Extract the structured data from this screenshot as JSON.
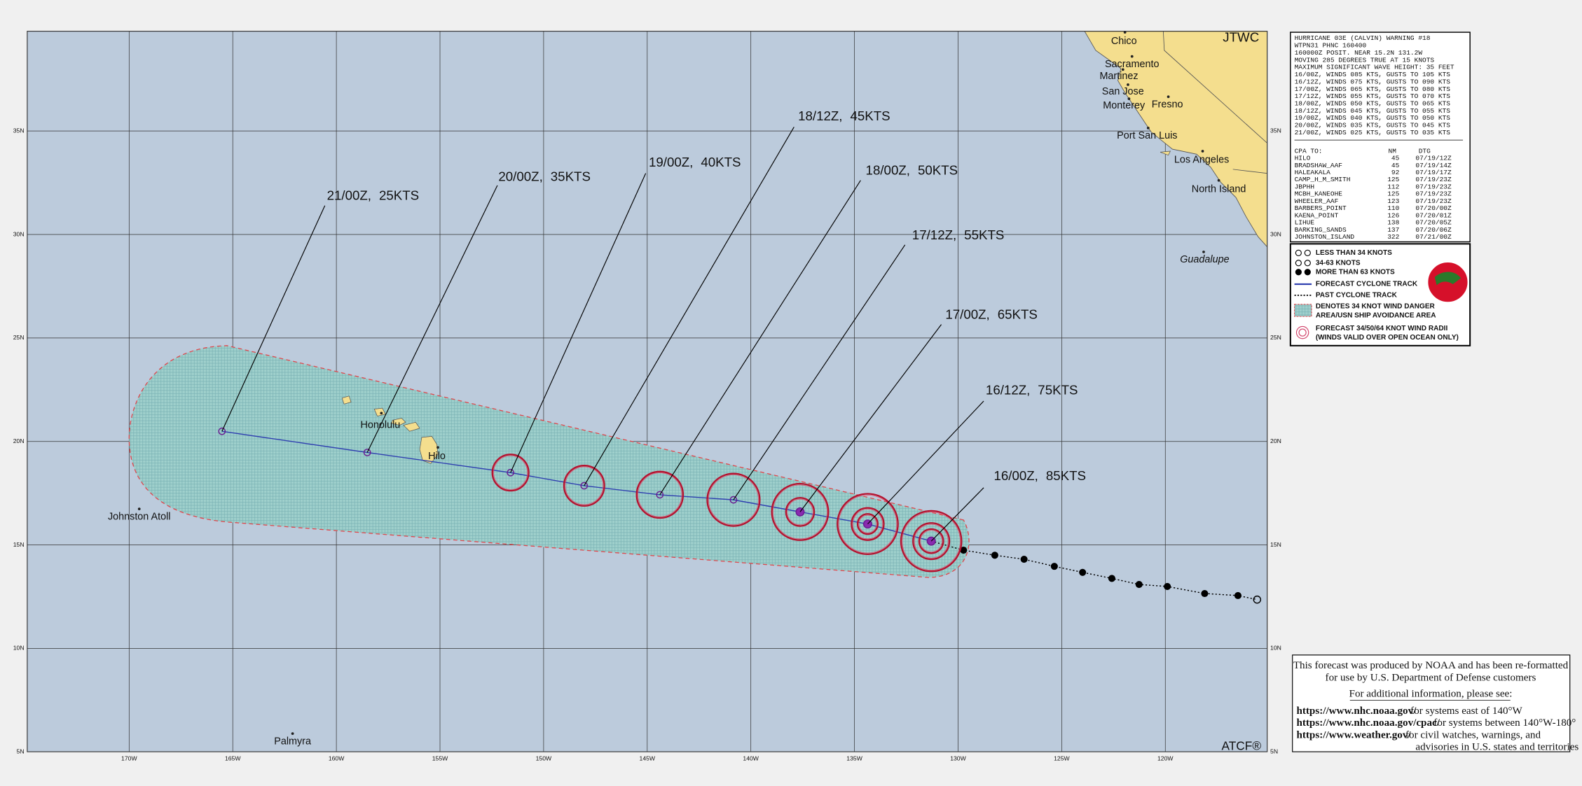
{
  "header": {
    "agency": "JTWC",
    "footer_mark": "ATCF®"
  },
  "warning": {
    "lines": [
      "HURRICANE 03E (CALVIN) WARNING #18",
      "WTPN31 PHNC 160400",
      "160000Z POSIT. NEAR 15.2N 131.2W",
      "MOVING 285 DEGREES TRUE AT 15 KNOTS",
      "MAXIMUM SIGNIFICANT WAVE HEIGHT: 35 FEET",
      "16/00Z, WINDS 085 KTS, GUSTS TO 105 KTS",
      "16/12Z, WINDS 075 KTS, GUSTS TO 090 KTS",
      "17/00Z, WINDS 065 KTS, GUSTS TO 080 KTS",
      "17/12Z, WINDS 055 KTS, GUSTS TO 070 KTS",
      "18/00Z, WINDS 050 KTS, GUSTS TO 065 KTS",
      "18/12Z, WINDS 045 KTS, GUSTS TO 055 KTS",
      "19/00Z, WINDS 040 KTS, GUSTS TO 050 KTS",
      "20/00Z, WINDS 035 KTS, GUSTS TO 045 KTS",
      "21/00Z, WINDS 025 KTS, GUSTS TO 035 KTS"
    ]
  },
  "cpa": {
    "title": "CPA TO:",
    "columns": [
      "NM",
      "DTG"
    ],
    "rows": [
      [
        "HILO",
        45,
        "07/19/12Z"
      ],
      [
        "BRADSHAW_AAF",
        45,
        "07/19/14Z"
      ],
      [
        "HALEAKALA",
        92,
        "07/19/17Z"
      ],
      [
        "CAMP_H_M_SMITH",
        125,
        "07/19/23Z"
      ],
      [
        "JBPHH",
        112,
        "07/19/23Z"
      ],
      [
        "MCBH_KANEOHE",
        125,
        "07/19/23Z"
      ],
      [
        "WHEELER_AAF",
        123,
        "07/19/23Z"
      ],
      [
        "BARBERS_POINT",
        110,
        "07/20/00Z"
      ],
      [
        "KAENA_POINT",
        126,
        "07/20/01Z"
      ],
      [
        "LIHUE",
        138,
        "07/20/05Z"
      ],
      [
        "BARKING_SANDS",
        137,
        "07/20/06Z"
      ],
      [
        "JOHNSTON_ISLAND",
        322,
        "07/21/00Z"
      ]
    ]
  },
  "legend": {
    "items": [
      "LESS THAN 34 KNOTS",
      "34-63 KNOTS",
      "MORE THAN 63 KNOTS",
      "FORECAST CYCLONE TRACK",
      "PAST CYCLONE TRACK",
      "DENOTES 34 KNOT WIND DANGER",
      "AREA/USN SHIP AVOIDANCE AREA",
      "FORECAST 34/50/64 KNOT WIND RADII",
      "(WINDS VALID OVER OPEN OCEAN ONLY)"
    ]
  },
  "forecast_labels": [
    "16/00Z, 85KTS",
    "16/12Z, 75KTS",
    "17/00Z, 65KTS",
    "17/12Z, 55KTS",
    "18/00Z, 50KTS",
    "18/12Z, 45KTS",
    "19/00Z, 40KTS",
    "20/00Z, 35KTS",
    "21/00Z, 25KTS"
  ],
  "places": [
    "Chico",
    "Sacramento",
    "Martinez",
    "San Jose",
    "Monterey",
    "Fresno",
    "Port San Luis",
    "Los Angeles",
    "North Island",
    "Guadalupe",
    "Honolulu",
    "Hilo",
    "Johnston Atoll",
    "Palmyra"
  ],
  "axes": {
    "lon": [
      "170W",
      "165W",
      "160W",
      "155W",
      "150W",
      "145W",
      "140W",
      "135W",
      "130W",
      "125W",
      "120W"
    ],
    "lat": [
      "35N",
      "30N",
      "25N",
      "20N",
      "15N",
      "10N",
      "5N"
    ]
  },
  "notice": {
    "lines": [
      "This forecast was produced by NOAA and has been re-formatted",
      "for use by U.S. Department of Defense customers",
      "For additional information, please see:"
    ],
    "links": [
      {
        "url": "https://www.nhc.noaa.gov/",
        "text": "for systems east of 140°W"
      },
      {
        "url": "https://www.nhc.noaa.gov/cpac/",
        "text": "for systems between 140°W-180°"
      },
      {
        "url": "https://www.weather.gov/",
        "text": "for civil watches, warnings, and"
      }
    ],
    "extra": "advisories in U.S. states and territories"
  }
}
